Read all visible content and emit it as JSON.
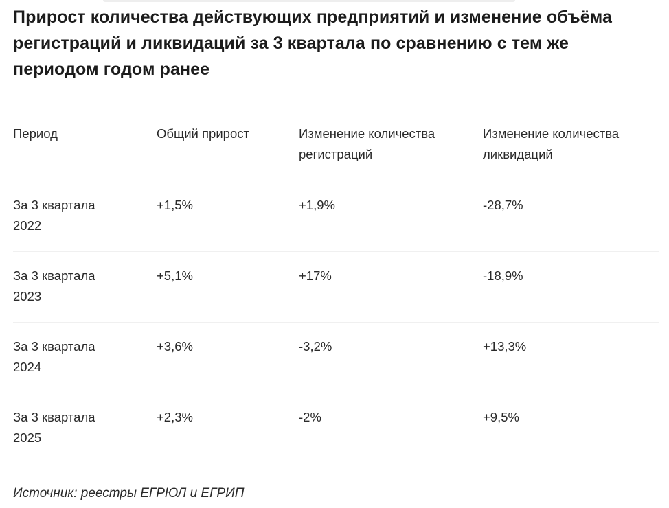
{
  "title": "Прирост количества действующих предприятий и изменение объёма регистраций и ликвидаций за 3 квартала по сравнению с тем же периодом годом ранее",
  "table": {
    "columns": [
      "Период",
      "Общий прирост",
      "Изменение количества регистраций",
      "Изменение количества ликвидаций"
    ],
    "rows": [
      {
        "period": "За 3 квартала 2022",
        "total": "+1,5%",
        "registrations": "+1,9%",
        "liquidations": "-28,7%"
      },
      {
        "period": "За 3 квартала 2023",
        "total": "+5,1%",
        "registrations": "+17%",
        "liquidations": "-18,9%"
      },
      {
        "period": "За 3 квартала 2024",
        "total": "+3,6%",
        "registrations": "-3,2%",
        "liquidations": "+13,3%"
      },
      {
        "period": "За 3 квартала 2025",
        "total": "+2,3%",
        "registrations": "-2%",
        "liquidations": "+9,5%"
      }
    ]
  },
  "source": "Источник: реестры ЕГРЮЛ и ЕГРИП"
}
